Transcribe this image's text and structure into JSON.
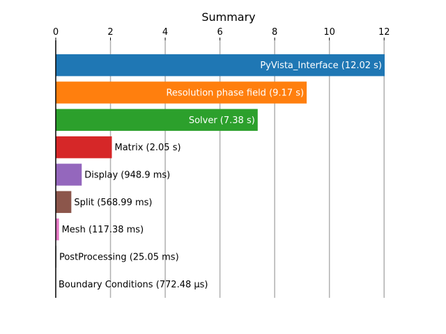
{
  "chart_data": {
    "type": "bar",
    "orientation": "horizontal",
    "title": "Summary",
    "xlabel": "",
    "ylabel": "",
    "xlim": [
      0,
      12.02
    ],
    "x_ticks": [
      0,
      2,
      4,
      6,
      8,
      10,
      12
    ],
    "x_tick_labels": [
      "0",
      "2",
      "4",
      "6",
      "8",
      "10",
      "12"
    ],
    "x_axis_position": "top",
    "grid": "vertical",
    "legend": "none",
    "bars": [
      {
        "name": "PyVista_Interface",
        "value": 12.02,
        "label": "PyVista_Interface (12.02 s)",
        "color": "#1f77b4",
        "label_inside": true
      },
      {
        "name": "Resolution phase field",
        "value": 9.17,
        "label": "Resolution phase field (9.17 s)",
        "color": "#ff7f0e",
        "label_inside": true
      },
      {
        "name": "Solver",
        "value": 7.38,
        "label": "Solver (7.38 s)",
        "color": "#2ca02c",
        "label_inside": true
      },
      {
        "name": "Matrix",
        "value": 2.05,
        "label": "Matrix (2.05 s)",
        "color": "#d62728",
        "label_inside": false
      },
      {
        "name": "Display",
        "value": 0.9489,
        "label": "Display (948.9 ms)",
        "color": "#9467bd",
        "label_inside": false
      },
      {
        "name": "Split",
        "value": 0.56899,
        "label": "Split (568.99 ms)",
        "color": "#8c564b",
        "label_inside": false
      },
      {
        "name": "Mesh",
        "value": 0.11738,
        "label": "Mesh (117.38 ms)",
        "color": "#e377c2",
        "label_inside": false
      },
      {
        "name": "PostProcessing",
        "value": 0.02505,
        "label": "PostProcessing (25.05 ms)",
        "color": "#7f7f7f",
        "label_inside": false
      },
      {
        "name": "Boundary Conditions",
        "value": 0.00077248,
        "label": "Boundary Conditions (772.48 µs)",
        "color": "#bcbd22",
        "label_inside": false
      }
    ]
  }
}
